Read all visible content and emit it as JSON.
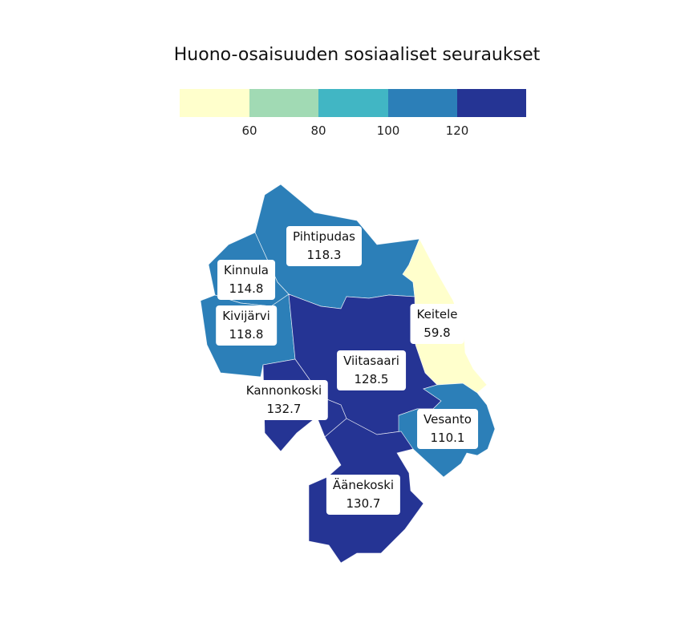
{
  "title": "Huono-osaisuuden sosiaaliset seuraukset",
  "legend": {
    "colors": [
      "#ffffcc",
      "#a1dab4",
      "#41b6c4",
      "#2c7fb8",
      "#253494"
    ],
    "ticks": [
      "60",
      "80",
      "100",
      "120"
    ]
  },
  "regions": [
    {
      "name": "Pihtipudas",
      "value": "118.3",
      "color": "#2c7fb8"
    },
    {
      "name": "Kinnula",
      "value": "114.8",
      "color": "#2c7fb8"
    },
    {
      "name": "Kivijärvi",
      "value": "118.8",
      "color": "#2c7fb8"
    },
    {
      "name": "Keitele",
      "value": "59.8",
      "color": "#ffffcc"
    },
    {
      "name": "Viitasaari",
      "value": "128.5",
      "color": "#253494"
    },
    {
      "name": "Kannonkoski",
      "value": "132.7",
      "color": "#253494"
    },
    {
      "name": "Vesanto",
      "value": "110.1",
      "color": "#2c7fb8"
    },
    {
      "name": "Äänekoski",
      "value": "130.7",
      "color": "#253494"
    }
  ]
}
